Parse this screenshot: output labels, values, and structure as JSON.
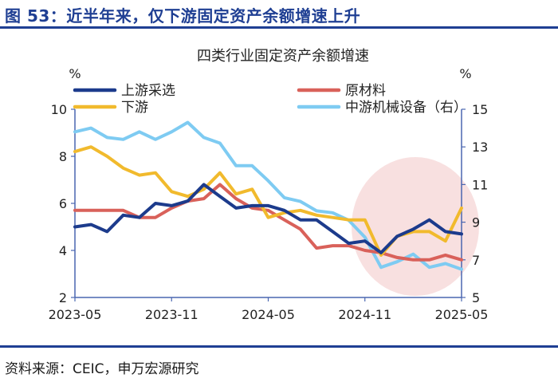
{
  "figure": {
    "title": "图 53：近半年来，仅下游固定资产余额增速上升",
    "source": "资料来源：CEIC，申万宏源研究"
  },
  "colors": {
    "brand": "#1f3f93",
    "highlight": "#f7dada"
  },
  "chart_data": {
    "type": "line",
    "title": "四类行业固定资产余额增速",
    "ylabel_left": "%",
    "ylabel_right": "%",
    "ylim_left": [
      2,
      10
    ],
    "yticks_left": [
      2,
      4,
      6,
      8,
      10
    ],
    "ylim_right": [
      5,
      15
    ],
    "yticks_right": [
      5,
      7,
      9,
      11,
      13,
      15
    ],
    "x": [
      "2023-05",
      "2023-06",
      "2023-07",
      "2023-08",
      "2023-09",
      "2023-10",
      "2023-11",
      "2023-12",
      "2024-01",
      "2024-02",
      "2024-03",
      "2024-04",
      "2024-05",
      "2024-06",
      "2024-07",
      "2024-08",
      "2024-09",
      "2024-10",
      "2024-11",
      "2024-12",
      "2025-01",
      "2025-02",
      "2025-03",
      "2025-04",
      "2025-05"
    ],
    "xtick_labels": [
      "2023-05",
      "2023-11",
      "2024-05",
      "2024-11",
      "2025-05"
    ],
    "grid": false,
    "legend_position": "top",
    "series": [
      {
        "name": "上游采选",
        "axis": "left",
        "color": "#1c3b8c",
        "values": [
          5.0,
          5.1,
          4.8,
          5.5,
          5.4,
          6.0,
          5.9,
          6.1,
          6.8,
          6.3,
          5.8,
          5.9,
          5.9,
          5.7,
          5.3,
          5.3,
          4.8,
          4.3,
          4.4,
          3.9,
          4.6,
          4.9,
          5.3,
          4.8,
          4.7
        ]
      },
      {
        "name": "原材料",
        "axis": "left",
        "color": "#d9615a",
        "values": [
          5.7,
          5.7,
          5.7,
          5.7,
          5.4,
          5.4,
          5.8,
          6.1,
          6.2,
          6.8,
          6.2,
          5.8,
          5.7,
          5.3,
          4.9,
          4.1,
          4.2,
          4.2,
          4.0,
          3.9,
          3.7,
          3.6,
          3.6,
          3.8,
          3.6
        ]
      },
      {
        "name": "下游",
        "axis": "left",
        "color": "#f1ba2d",
        "values": [
          8.2,
          8.4,
          8.0,
          7.5,
          7.2,
          7.3,
          6.5,
          6.3,
          6.6,
          7.3,
          6.4,
          6.6,
          5.4,
          5.6,
          5.7,
          5.5,
          5.4,
          5.3,
          5.3,
          3.8,
          4.6,
          4.8,
          4.8,
          4.4,
          5.8
        ]
      },
      {
        "name": "中游机械设备（右）",
        "axis": "right",
        "color": "#7ecbf2",
        "values": [
          13.8,
          14.0,
          13.5,
          13.4,
          13.8,
          13.4,
          13.8,
          14.3,
          13.5,
          13.2,
          12.0,
          12.0,
          11.2,
          10.3,
          10.1,
          9.6,
          9.5,
          9.1,
          8.2,
          6.6,
          6.9,
          7.3,
          6.6,
          6.8,
          6.5
        ]
      }
    ]
  }
}
